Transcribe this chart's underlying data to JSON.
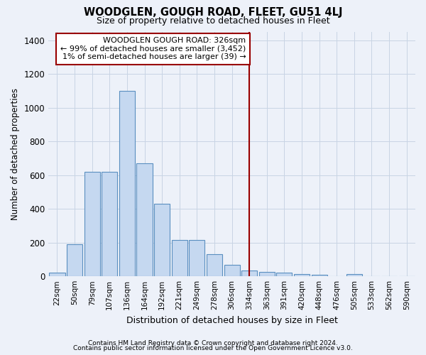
{
  "title": "WOODGLEN, GOUGH ROAD, FLEET, GU51 4LJ",
  "subtitle": "Size of property relative to detached houses in Fleet",
  "xlabel": "Distribution of detached houses by size in Fleet",
  "ylabel": "Number of detached properties",
  "bin_labels": [
    "22sqm",
    "50sqm",
    "79sqm",
    "107sqm",
    "136sqm",
    "164sqm",
    "192sqm",
    "221sqm",
    "249sqm",
    "278sqm",
    "306sqm",
    "334sqm",
    "363sqm",
    "391sqm",
    "420sqm",
    "448sqm",
    "476sqm",
    "505sqm",
    "533sqm",
    "562sqm",
    "590sqm"
  ],
  "bar_heights": [
    20,
    190,
    620,
    620,
    1100,
    670,
    430,
    215,
    215,
    130,
    70,
    35,
    28,
    20,
    15,
    10,
    0,
    15,
    0,
    0,
    0
  ],
  "bar_color": "#c5d8f0",
  "bar_edge_color": "#5a8fc0",
  "grid_color": "#c8d4e4",
  "vline_x": 11.0,
  "vline_color": "#990000",
  "annotation_line1": "WOODGLEN GOUGH ROAD: 326sqm",
  "annotation_line2": "← 99% of detached houses are smaller (3,452)",
  "annotation_line3": "1% of semi-detached houses are larger (39) →",
  "annotation_box_color": "#ffffff",
  "annotation_box_edge": "#990000",
  "ylim": [
    0,
    1450
  ],
  "yticks": [
    0,
    200,
    400,
    600,
    800,
    1000,
    1200,
    1400
  ],
  "footer_line1": "Contains HM Land Registry data © Crown copyright and database right 2024.",
  "footer_line2": "Contains public sector information licensed under the Open Government Licence v3.0.",
  "background_color": "#edf1f9"
}
